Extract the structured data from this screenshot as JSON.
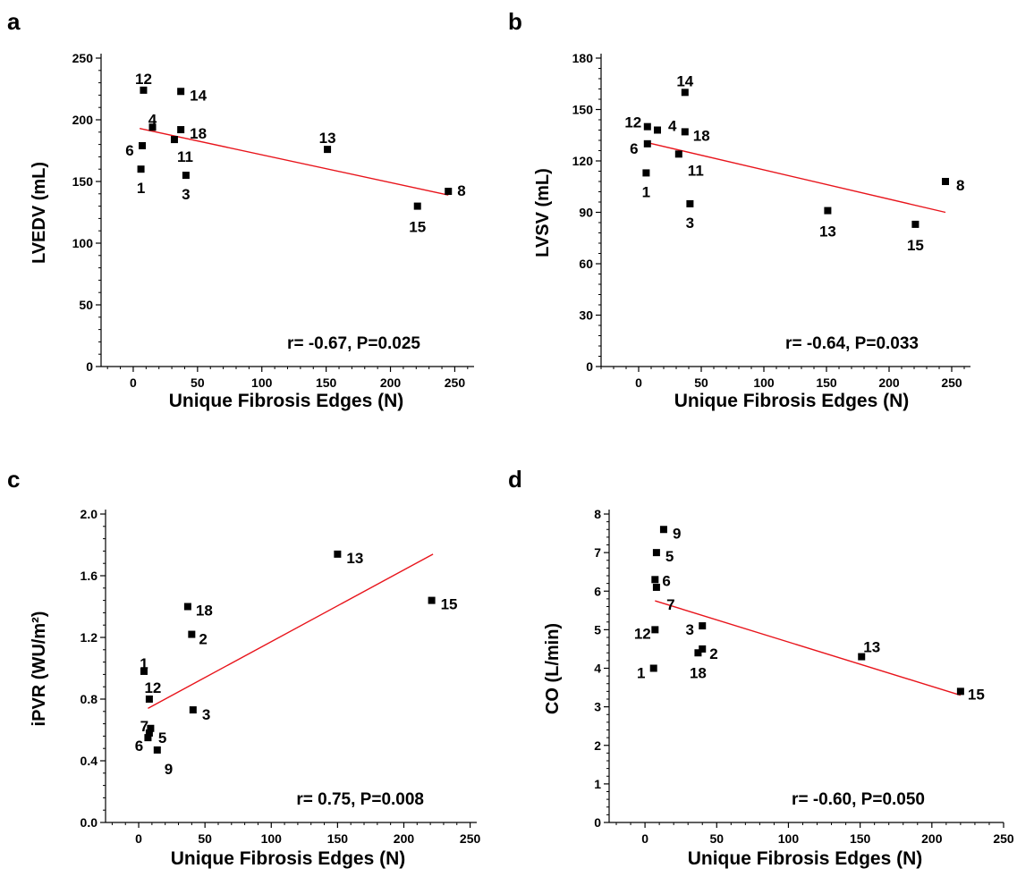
{
  "chart_data": [
    {
      "panel": "a",
      "type": "scatter",
      "xlabel": "Unique Fibrosis Edges (N)",
      "ylabel": "LVEDV (mL)",
      "xlim": [
        -25,
        265
      ],
      "ylim": [
        0,
        250
      ],
      "xticks": [
        0,
        50,
        100,
        150,
        200,
        250
      ],
      "yticks": [
        0,
        50,
        100,
        150,
        200,
        250
      ],
      "annotation": "r= -0.67, P=0.025",
      "points": [
        {
          "label": "12",
          "x": 8,
          "y": 224
        },
        {
          "label": "14",
          "x": 37,
          "y": 223
        },
        {
          "label": "4",
          "x": 15,
          "y": 194
        },
        {
          "label": "18",
          "x": 37,
          "y": 192
        },
        {
          "label": "6",
          "x": 7,
          "y": 179
        },
        {
          "label": "11",
          "x": 32,
          "y": 184
        },
        {
          "label": "1",
          "x": 6,
          "y": 160
        },
        {
          "label": "3",
          "x": 41,
          "y": 155
        },
        {
          "label": "13",
          "x": 151,
          "y": 176
        },
        {
          "label": "15",
          "x": 221,
          "y": 130
        },
        {
          "label": "8",
          "x": 245,
          "y": 142
        }
      ],
      "fit": [
        [
          5,
          193
        ],
        [
          245,
          139
        ]
      ]
    },
    {
      "panel": "b",
      "type": "scatter",
      "xlabel": "Unique Fibrosis Edges (N)",
      "ylabel": "LVSV  (mL)",
      "xlim": [
        -30,
        265
      ],
      "ylim": [
        0,
        180
      ],
      "xticks": [
        0,
        50,
        100,
        150,
        200,
        250
      ],
      "yticks": [
        0,
        30,
        60,
        90,
        120,
        150,
        180
      ],
      "annotation": "r= -0.64, P=0.033",
      "points": [
        {
          "label": "14",
          "x": 37,
          "y": 160
        },
        {
          "label": "12",
          "x": 7,
          "y": 140
        },
        {
          "label": "4",
          "x": 15,
          "y": 138
        },
        {
          "label": "18",
          "x": 37,
          "y": 137
        },
        {
          "label": "6",
          "x": 7,
          "y": 130
        },
        {
          "label": "11",
          "x": 32,
          "y": 124
        },
        {
          "label": "1",
          "x": 6,
          "y": 113
        },
        {
          "label": "3",
          "x": 41,
          "y": 95
        },
        {
          "label": "13",
          "x": 151,
          "y": 91
        },
        {
          "label": "15",
          "x": 221,
          "y": 83
        },
        {
          "label": "8",
          "x": 245,
          "y": 108
        }
      ],
      "fit": [
        [
          5,
          131
        ],
        [
          245,
          90
        ]
      ]
    },
    {
      "panel": "c",
      "type": "scatter",
      "xlabel": "Unique Fibrosis Edges (N)",
      "ylabel": "iPVR (WU/m²)",
      "xlim": [
        -25,
        255
      ],
      "ylim": [
        0,
        2.0
      ],
      "xticks": [
        0,
        50,
        100,
        150,
        200,
        250
      ],
      "yticks": [
        0.0,
        0.4,
        0.8,
        1.2,
        1.6,
        2.0
      ],
      "ytick_labels": [
        "0.0",
        "0.4",
        "0.8",
        "1.2",
        "1.6",
        "2.0"
      ],
      "annotation": "r= 0.75, P=0.008",
      "points": [
        {
          "label": "13",
          "x": 150,
          "y": 1.74
        },
        {
          "label": "15",
          "x": 221,
          "y": 1.44
        },
        {
          "label": "18",
          "x": 37,
          "y": 1.4
        },
        {
          "label": "2",
          "x": 40,
          "y": 1.22
        },
        {
          "label": "1",
          "x": 4,
          "y": 0.98
        },
        {
          "label": "12",
          "x": 8,
          "y": 0.8
        },
        {
          "label": "3",
          "x": 41,
          "y": 0.73
        },
        {
          "label": "7",
          "x": 9,
          "y": 0.61
        },
        {
          "label": "5",
          "x": 8,
          "y": 0.58
        },
        {
          "label": "6",
          "x": 7,
          "y": 0.55
        },
        {
          "label": "9",
          "x": 14,
          "y": 0.47
        }
      ],
      "fit": [
        [
          7,
          0.74
        ],
        [
          222,
          1.74
        ]
      ]
    },
    {
      "panel": "d",
      "type": "scatter",
      "xlabel": "Unique Fibrosis Edges (N)",
      "ylabel": "CO (L/min)",
      "xlim": [
        -25,
        250
      ],
      "ylim": [
        0,
        8
      ],
      "xticks": [
        0,
        50,
        100,
        150,
        200,
        250
      ],
      "yticks": [
        0,
        1,
        2,
        3,
        4,
        5,
        6,
        7,
        8
      ],
      "annotation": "r= -0.60, P=0.050",
      "points": [
        {
          "label": "9",
          "x": 13,
          "y": 7.6
        },
        {
          "label": "5",
          "x": 8,
          "y": 7.0
        },
        {
          "label": "6",
          "x": 7,
          "y": 6.3
        },
        {
          "label": "7",
          "x": 8,
          "y": 6.1
        },
        {
          "label": "12",
          "x": 7,
          "y": 5.0
        },
        {
          "label": "3",
          "x": 40,
          "y": 5.1
        },
        {
          "label": "2",
          "x": 40,
          "y": 4.5
        },
        {
          "label": "18",
          "x": 37,
          "y": 4.4
        },
        {
          "label": "1",
          "x": 6,
          "y": 4.0
        },
        {
          "label": "13",
          "x": 151,
          "y": 4.3
        },
        {
          "label": "15",
          "x": 220,
          "y": 3.4
        }
      ],
      "fit": [
        [
          7,
          5.75
        ],
        [
          220,
          3.3
        ]
      ]
    }
  ]
}
